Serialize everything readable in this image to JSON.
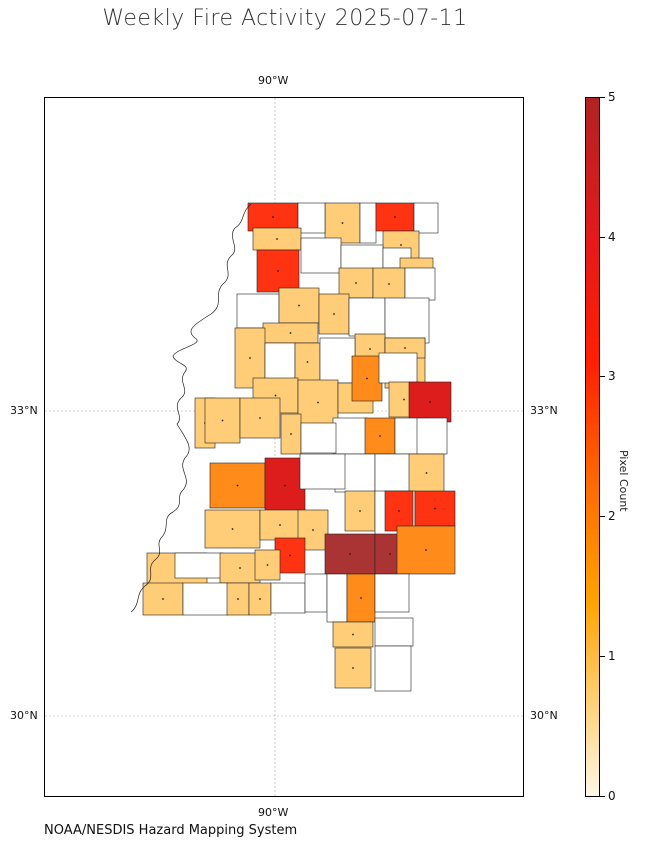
{
  "title": "Weekly Fire Activity 2025-07-11",
  "footer_credit": "NOAA/NESDIS Hazard Mapping System",
  "gridlines": {
    "lon_label_top": "90°W",
    "lon_label_bottom": "90°W",
    "lat_labels_left": [
      "33°N",
      "30°N"
    ],
    "lat_labels_right": [
      "33°N",
      "30°N"
    ]
  },
  "colorbar": {
    "label": "Pixel Count",
    "ticks": [
      "0",
      "1",
      "2",
      "3",
      "4",
      "5"
    ],
    "range": [
      0,
      5
    ]
  },
  "colors": {
    "c0": "#ffffff",
    "c1": "#ffcc77",
    "c2": "#ff8c1a",
    "c3": "#ff3311",
    "c4": "#dd1c1c",
    "c5": "#aa3333"
  },
  "map_region": "Mississippi counties",
  "county_fill_legend": "fill level = weekly fire pixel count (0-5)"
}
